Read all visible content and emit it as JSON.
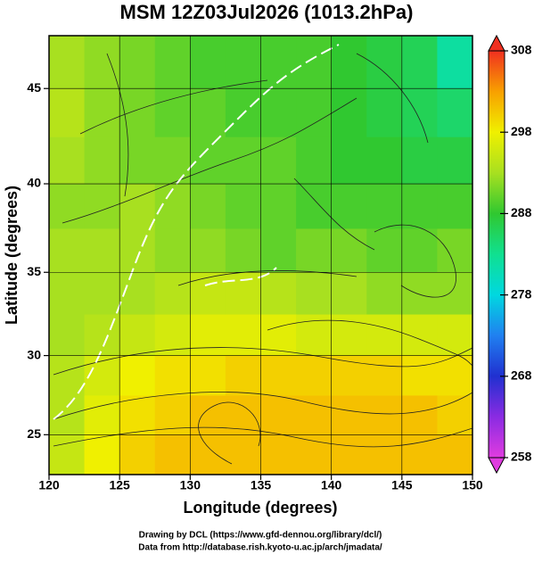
{
  "chart_data": {
    "type": "field",
    "title": "MSM 12Z03Jul2026 (1013.2hPa)",
    "xlabel": "Longitude (degrees)",
    "ylabel": "Latitude  (degrees)",
    "xlim": [
      120,
      150
    ],
    "ylim": [
      22.4,
      47.6
    ],
    "xticks": [
      120,
      125,
      130,
      135,
      140,
      145,
      150
    ],
    "yticks": [
      25,
      30,
      35,
      40,
      45
    ],
    "grid": true,
    "projection": "mercator",
    "field": {
      "lon_edges": [
        120,
        122.5,
        125,
        127.5,
        130,
        132.5,
        135,
        137.5,
        140,
        142.5,
        145,
        147.5,
        150
      ],
      "lat_edges": [
        47.6,
        45,
        42.5,
        40,
        37.5,
        35,
        32.5,
        30,
        27.5,
        25,
        22.4
      ],
      "values": [
        [
          293,
          292,
          291,
          290,
          289,
          289,
          289,
          289,
          288,
          287,
          286,
          282
        ],
        [
          294,
          292,
          291,
          290,
          290,
          289,
          289,
          289,
          288,
          287,
          286,
          285
        ],
        [
          293,
          292,
          291,
          291,
          290,
          290,
          290,
          289,
          288,
          288,
          287,
          287
        ],
        [
          292,
          292,
          293,
          292,
          291,
          290,
          290,
          289,
          289,
          289,
          289,
          289
        ],
        [
          293,
          293,
          293,
          292,
          292,
          291,
          290,
          291,
          291,
          290,
          290,
          291
        ],
        [
          293,
          293,
          293,
          294,
          295,
          295,
          294,
          293,
          293,
          292,
          292,
          292
        ],
        [
          293,
          294,
          295,
          296,
          297,
          297,
          297,
          296,
          296,
          296,
          296,
          296
        ],
        [
          294,
          296,
          298,
          299,
          299,
          300,
          300,
          300,
          300,
          300,
          299,
          299
        ],
        [
          294,
          297,
          299,
          300,
          301,
          301,
          301,
          301,
          301,
          301,
          301,
          300
        ],
        [
          295,
          298,
          300,
          301,
          301,
          301,
          301,
          301,
          301,
          301,
          301,
          301
        ]
      ]
    },
    "colorbar": {
      "lim": [
        258,
        308
      ],
      "ticks": [
        258,
        268,
        278,
        288,
        298,
        308
      ],
      "colorscale": [
        [
          258,
          "#e03ce0"
        ],
        [
          263,
          "#8a2be2"
        ],
        [
          268,
          "#2030d0"
        ],
        [
          273,
          "#2080f0"
        ],
        [
          278,
          "#00d8e0"
        ],
        [
          283,
          "#10e090"
        ],
        [
          288,
          "#30c830"
        ],
        [
          293,
          "#a8e020"
        ],
        [
          298,
          "#f0f000"
        ],
        [
          303,
          "#f8a000"
        ],
        [
          308,
          "#f03020"
        ]
      ]
    },
    "footer": [
      "Drawing by DCL (https://www.gfd-dennou.org/library/dcl/)",
      "Data from http://database.rish.kyoto-u.ac.jp/arch/jmadata/"
    ]
  }
}
